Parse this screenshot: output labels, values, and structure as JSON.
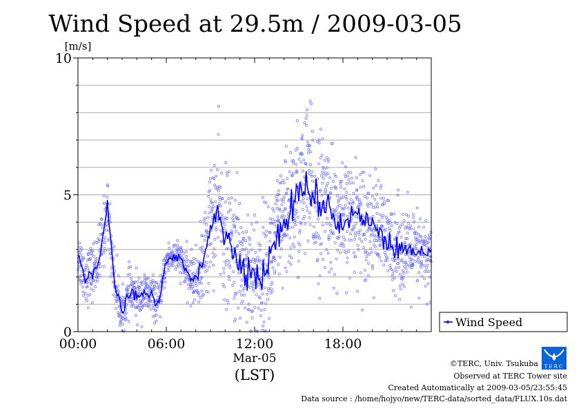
{
  "chart_data": {
    "type": "scatter",
    "title": "Wind Speed at 29.5m / 2009-03-05",
    "ylabel": "[m/s]",
    "xlabel": "(LST)",
    "x_date_label": "Mar-05",
    "xlim_hours": [
      0,
      24
    ],
    "ylim": [
      0,
      10
    ],
    "x_ticks": [
      {
        "h": 0,
        "label": "00:00"
      },
      {
        "h": 6,
        "label": "06:00"
      },
      {
        "h": 12,
        "label": "12:00"
      },
      {
        "h": 18,
        "label": "18:00"
      }
    ],
    "y_ticks": [
      {
        "v": 0,
        "label": "0"
      },
      {
        "v": 5,
        "label": "5"
      },
      {
        "v": 10,
        "label": "10"
      }
    ],
    "grid": true,
    "legend": {
      "position": "right-bottom",
      "entries": [
        "Wind Speed"
      ]
    },
    "color": "#0000ff",
    "series": [
      {
        "name": "Wind Speed",
        "x_hours": [
          0,
          0.5,
          1,
          1.5,
          2,
          2.5,
          3,
          3.5,
          4,
          4.5,
          5,
          5.5,
          6,
          6.5,
          7,
          7.5,
          8,
          8.5,
          9,
          9.5,
          10,
          10.5,
          11,
          11.5,
          12,
          12.5,
          13,
          13.5,
          14,
          14.5,
          15,
          15.5,
          16,
          16.5,
          17,
          17.5,
          18,
          18.5,
          19,
          19.5,
          20,
          20.5,
          21,
          21.5,
          22,
          22.5,
          23,
          23.5,
          24
        ],
        "mean": [
          2.8,
          2.0,
          2.2,
          2.8,
          4.5,
          1.8,
          0.6,
          1.5,
          1.2,
          1.4,
          1.3,
          1.0,
          2.6,
          2.8,
          2.6,
          2.0,
          1.9,
          2.5,
          4.0,
          4.6,
          3.4,
          3.0,
          2.6,
          2.4,
          2.0,
          2.0,
          2.6,
          3.5,
          3.8,
          4.6,
          4.8,
          5.5,
          5.0,
          4.6,
          4.8,
          4.0,
          3.9,
          4.2,
          4.3,
          4.0,
          3.9,
          3.8,
          3.2,
          3.2,
          3.0,
          2.9,
          2.8,
          2.7,
          2.7
        ],
        "spread": [
          0.5,
          0.5,
          0.5,
          0.6,
          0.6,
          0.5,
          0.4,
          0.4,
          0.4,
          0.4,
          0.4,
          0.3,
          0.3,
          0.3,
          0.3,
          0.4,
          0.5,
          0.8,
          1.1,
          1.2,
          1.2,
          1.2,
          1.2,
          1.2,
          1.2,
          1.2,
          1.1,
          1.1,
          1.2,
          1.3,
          1.4,
          1.4,
          1.4,
          1.3,
          1.2,
          1.1,
          1.0,
          1.0,
          1.0,
          1.0,
          0.9,
          0.9,
          0.8,
          0.8,
          0.8,
          0.8,
          0.8,
          0.7,
          0.7
        ]
      }
    ]
  },
  "footer": {
    "copyright": "©TERC, Univ. Tsukuba",
    "site": "Observed at TERC Tower site",
    "created": "Created Automatically at 2009-03-05/23:55:45",
    "source": "Data source : /home/hojyo/new/TERC-data/sorted_data/FLUX.10s.dat",
    "logo_text": "TERC"
  }
}
